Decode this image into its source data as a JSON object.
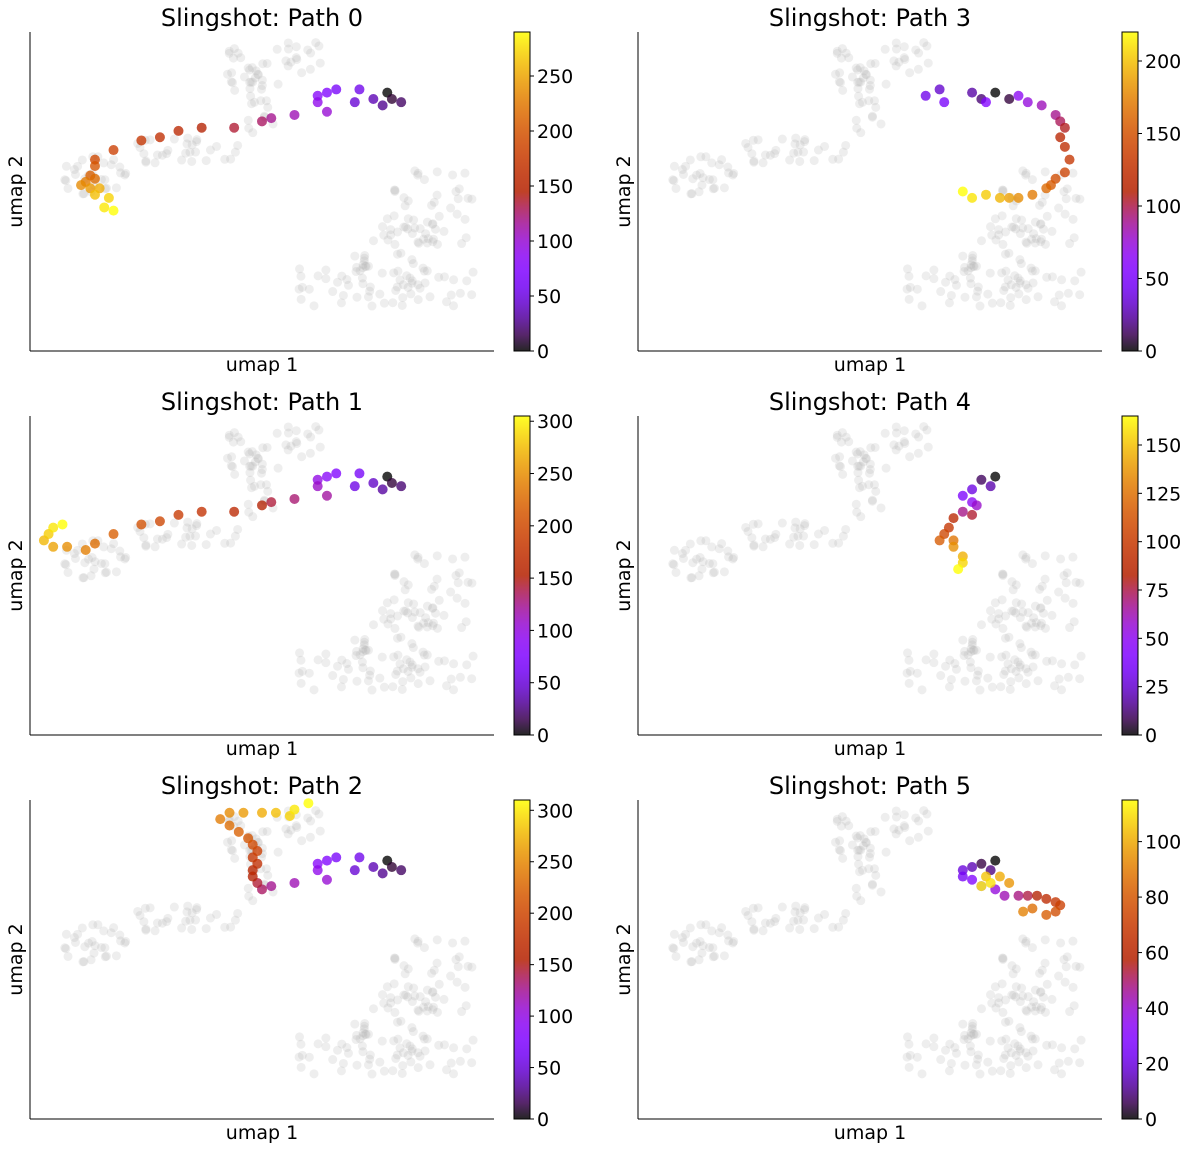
{
  "colors": {
    "background_points": "#b3b3b3",
    "axis": "#000000",
    "colormap": "gnuplot (black-purple-red-orange-yellow)"
  },
  "chart_data": [
    {
      "type": "scatter",
      "title": "Slingshot: Path 0",
      "xlabel": "umap 1",
      "ylabel": "umap 2",
      "colorbar": {
        "min": 0,
        "max": 290,
        "ticks": [
          "0",
          "50",
          "100",
          "150",
          "200",
          "250"
        ]
      },
      "path": [
        [
          77,
          81
        ],
        [
          78,
          79
        ],
        [
          80,
          78
        ],
        [
          76,
          77
        ],
        [
          74,
          79
        ],
        [
          70,
          78
        ],
        [
          71,
          82
        ],
        [
          66,
          82
        ],
        [
          64,
          81
        ],
        [
          62,
          80
        ],
        [
          62,
          78
        ],
        [
          64,
          75
        ],
        [
          57,
          74
        ],
        [
          52,
          73
        ],
        [
          50,
          72
        ],
        [
          44,
          70
        ],
        [
          37,
          70
        ],
        [
          32,
          69
        ],
        [
          28,
          67
        ],
        [
          24,
          66
        ],
        [
          18,
          63
        ],
        [
          14,
          60
        ],
        [
          14,
          58
        ],
        [
          13,
          55
        ],
        [
          14,
          54
        ],
        [
          12,
          53
        ],
        [
          11,
          52
        ],
        [
          13,
          51
        ],
        [
          15,
          51
        ],
        [
          14,
          49
        ],
        [
          17,
          48
        ],
        [
          16,
          45
        ],
        [
          18,
          44
        ]
      ],
      "path_max": 290
    },
    {
      "type": "scatter",
      "title": "Slingshot: Path 3",
      "xlabel": "umap 1",
      "ylabel": "umap 2",
      "colorbar": {
        "min": 0,
        "max": 220,
        "ticks": [
          "0",
          "50",
          "100",
          "150",
          "200"
        ]
      },
      "path": [
        [
          77,
          81
        ],
        [
          80,
          79
        ],
        [
          74,
          79
        ],
        [
          72,
          81
        ],
        [
          65,
          82
        ],
        [
          62,
          80
        ],
        [
          66,
          78
        ],
        [
          75,
          78
        ],
        [
          82,
          80
        ],
        [
          84,
          78
        ],
        [
          87,
          77
        ],
        [
          90,
          74
        ],
        [
          91,
          72
        ],
        [
          92,
          70
        ],
        [
          91,
          67
        ],
        [
          92,
          64
        ],
        [
          93,
          60
        ],
        [
          92,
          56
        ],
        [
          90,
          54
        ],
        [
          89,
          52
        ],
        [
          88,
          51
        ],
        [
          85,
          49
        ],
        [
          82,
          48
        ],
        [
          80,
          48
        ],
        [
          78,
          48
        ],
        [
          75,
          49
        ],
        [
          72,
          48
        ],
        [
          70,
          50
        ]
      ],
      "path_max": 220
    },
    {
      "type": "scatter",
      "title": "Slingshot: Path 1",
      "xlabel": "umap 1",
      "ylabel": "umap 2",
      "colorbar": {
        "min": 0,
        "max": 305,
        "ticks": [
          "0",
          "50",
          "100",
          "150",
          "200",
          "250",
          "300"
        ]
      },
      "path": [
        [
          77,
          81
        ],
        [
          78,
          79
        ],
        [
          80,
          78
        ],
        [
          76,
          77
        ],
        [
          74,
          79
        ],
        [
          70,
          78
        ],
        [
          71,
          82
        ],
        [
          66,
          82
        ],
        [
          64,
          81
        ],
        [
          62,
          80
        ],
        [
          62,
          78
        ],
        [
          64,
          75
        ],
        [
          57,
          74
        ],
        [
          52,
          73
        ],
        [
          50,
          72
        ],
        [
          44,
          70
        ],
        [
          37,
          70
        ],
        [
          32,
          69
        ],
        [
          28,
          67
        ],
        [
          24,
          66
        ],
        [
          18,
          63
        ],
        [
          14,
          60
        ],
        [
          12,
          58
        ],
        [
          8,
          59
        ],
        [
          5,
          59
        ],
        [
          3,
          61
        ],
        [
          4,
          63
        ],
        [
          5,
          65
        ],
        [
          7,
          66
        ]
      ],
      "path_max": 305
    },
    {
      "type": "scatter",
      "title": "Slingshot: Path 4",
      "xlabel": "umap 1",
      "ylabel": "umap 2",
      "colorbar": {
        "min": 0,
        "max": 165,
        "ticks": [
          "0",
          "25",
          "50",
          "75",
          "100",
          "125",
          "150"
        ]
      },
      "path": [
        [
          77,
          81
        ],
        [
          74,
          80
        ],
        [
          76,
          78
        ],
        [
          72,
          77
        ],
        [
          70,
          75
        ],
        [
          72,
          73
        ],
        [
          73,
          72
        ],
        [
          70,
          70
        ],
        [
          72,
          69
        ],
        [
          68,
          68
        ],
        [
          67,
          65
        ],
        [
          66,
          63
        ],
        [
          65,
          61
        ],
        [
          68,
          61
        ],
        [
          68,
          59
        ],
        [
          70,
          56
        ],
        [
          70,
          54
        ],
        [
          69,
          52
        ]
      ],
      "path_max": 165
    },
    {
      "type": "scatter",
      "title": "Slingshot: Path 2",
      "xlabel": "umap 1",
      "ylabel": "umap 2",
      "colorbar": {
        "min": 0,
        "max": 310,
        "ticks": [
          "0",
          "50",
          "100",
          "150",
          "200",
          "250",
          "300"
        ]
      },
      "path": [
        [
          77,
          81
        ],
        [
          78,
          79
        ],
        [
          80,
          78
        ],
        [
          76,
          77
        ],
        [
          74,
          79
        ],
        [
          70,
          78
        ],
        [
          71,
          82
        ],
        [
          66,
          82
        ],
        [
          64,
          81
        ],
        [
          62,
          80
        ],
        [
          62,
          78
        ],
        [
          64,
          75
        ],
        [
          57,
          74
        ],
        [
          52,
          73
        ],
        [
          50,
          72
        ],
        [
          49,
          74
        ],
        [
          48,
          76
        ],
        [
          48,
          78
        ],
        [
          49,
          80
        ],
        [
          48,
          82
        ],
        [
          49,
          84
        ],
        [
          48,
          86
        ],
        [
          47,
          88
        ],
        [
          45,
          90
        ],
        [
          43,
          92
        ],
        [
          41,
          94
        ],
        [
          43,
          96
        ],
        [
          46,
          96
        ],
        [
          50,
          96
        ],
        [
          53,
          96
        ],
        [
          56,
          95
        ],
        [
          57,
          97
        ],
        [
          60,
          99
        ]
      ],
      "path_max": 310
    },
    {
      "type": "scatter",
      "title": "Slingshot: Path 5",
      "xlabel": "umap 1",
      "ylabel": "umap 2",
      "colorbar": {
        "min": 0,
        "max": 115,
        "ticks": [
          "0",
          "20",
          "40",
          "60",
          "80",
          "100"
        ]
      },
      "path": [
        [
          77,
          81
        ],
        [
          74,
          80
        ],
        [
          76,
          78
        ],
        [
          72,
          79
        ],
        [
          70,
          78
        ],
        [
          70,
          76
        ],
        [
          72,
          75
        ],
        [
          74,
          73
        ],
        [
          77,
          72
        ],
        [
          79,
          70
        ],
        [
          82,
          70
        ],
        [
          84,
          70
        ],
        [
          86,
          70
        ],
        [
          88,
          69
        ],
        [
          90,
          68
        ],
        [
          91,
          67
        ],
        [
          90,
          65
        ],
        [
          88,
          64
        ],
        [
          85,
          66
        ],
        [
          83,
          65
        ],
        [
          80,
          74
        ],
        [
          78,
          76
        ],
        [
          75,
          76
        ],
        [
          76,
          74
        ],
        [
          74,
          73
        ]
      ],
      "path_max": 115
    }
  ]
}
